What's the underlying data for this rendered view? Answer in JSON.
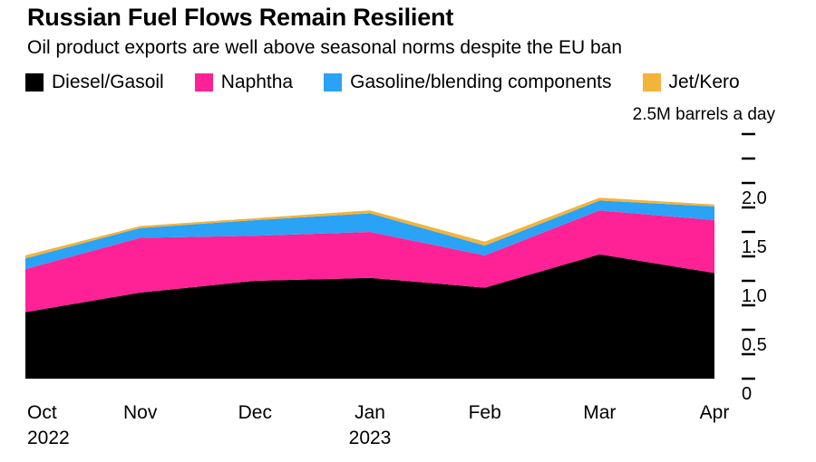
{
  "header": {
    "title": "Russian Fuel Flows Remain Resilient",
    "subtitle": "Oil product exports are well above seasonal norms despite the EU ban"
  },
  "chart_data": {
    "type": "area",
    "stacked": true,
    "title": "Russian Fuel Flows Remain Resilient",
    "subtitle": "Oil product exports are well above seasonal norms despite the EU ban",
    "unit_label": "2.5M barrels a day",
    "legend_position": "top",
    "grid": false,
    "ylabel": "M barrels a day",
    "ylim": [
      0,
      2.5
    ],
    "y_minor_tick_step": 0.25,
    "y_tick_labels": [
      {
        "value": 2.0,
        "label": "2.0"
      },
      {
        "value": 1.5,
        "label": "1.5"
      },
      {
        "value": 1.0,
        "label": "1.0"
      },
      {
        "value": 0.5,
        "label": "0.5"
      },
      {
        "value": 0,
        "label": "0"
      }
    ],
    "x": [
      {
        "label": "Oct",
        "year": "2022"
      },
      {
        "label": "Nov"
      },
      {
        "label": "Dec"
      },
      {
        "label": "Jan",
        "year": "2023"
      },
      {
        "label": "Feb"
      },
      {
        "label": "Mar"
      },
      {
        "label": "Apr"
      }
    ],
    "series": [
      {
        "name": "Diesel/Gasoil",
        "color": "#000000",
        "values": [
          0.68,
          0.88,
          1.0,
          1.03,
          0.93,
          1.27,
          1.08
        ]
      },
      {
        "name": "Naphtha",
        "color": "#ff2296",
        "values": [
          0.44,
          0.56,
          0.46,
          0.47,
          0.33,
          0.45,
          0.54
        ]
      },
      {
        "name": "Gasoline/blending components",
        "color": "#2aa2f6",
        "values": [
          0.11,
          0.1,
          0.16,
          0.19,
          0.1,
          0.1,
          0.14
        ]
      },
      {
        "name": "Jet/Kero",
        "color": "#f2b43a",
        "values": [
          0.03,
          0.02,
          0.02,
          0.03,
          0.04,
          0.03,
          0.02
        ]
      }
    ]
  }
}
